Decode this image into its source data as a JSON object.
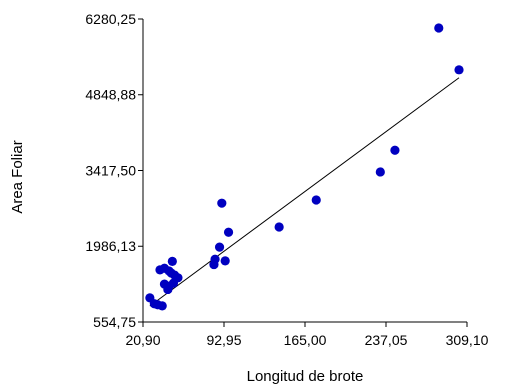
{
  "chart_data": {
    "type": "scatter",
    "xlabel": "Longitud de brote",
    "ylabel": "Area Foliar",
    "xlim": [
      20.9,
      309.1
    ],
    "ylim": [
      554.75,
      6280.25
    ],
    "xticks": [
      "20,90",
      "92,95",
      "165,00",
      "237,05",
      "309,10"
    ],
    "yticks": [
      "554,75",
      "1986,13",
      "3417,50",
      "4848,88",
      "6280,25"
    ],
    "xtick_values": [
      20.9,
      92.95,
      165.0,
      237.05,
      309.1
    ],
    "ytick_values": [
      554.75,
      1986.13,
      3417.5,
      4848.88,
      6280.25
    ],
    "grid": false,
    "marker_color": "#0000c0",
    "line_color": "#000000",
    "points": [
      {
        "x": 27,
        "y": 1010
      },
      {
        "x": 31,
        "y": 900
      },
      {
        "x": 34,
        "y": 880
      },
      {
        "x": 38,
        "y": 860
      },
      {
        "x": 36,
        "y": 1540
      },
      {
        "x": 40,
        "y": 1570
      },
      {
        "x": 44,
        "y": 1520
      },
      {
        "x": 47,
        "y": 1700
      },
      {
        "x": 46,
        "y": 1480
      },
      {
        "x": 49,
        "y": 1440
      },
      {
        "x": 52,
        "y": 1390
      },
      {
        "x": 40,
        "y": 1270
      },
      {
        "x": 44,
        "y": 1230
      },
      {
        "x": 48,
        "y": 1290
      },
      {
        "x": 43,
        "y": 1170
      },
      {
        "x": 84,
        "y": 1640
      },
      {
        "x": 85,
        "y": 1740
      },
      {
        "x": 89,
        "y": 1970
      },
      {
        "x": 94,
        "y": 1710
      },
      {
        "x": 97,
        "y": 2250
      },
      {
        "x": 91,
        "y": 2800
      },
      {
        "x": 142,
        "y": 2350
      },
      {
        "x": 175,
        "y": 2860
      },
      {
        "x": 232,
        "y": 3390
      },
      {
        "x": 245,
        "y": 3800
      },
      {
        "x": 284,
        "y": 6110
      },
      {
        "x": 302,
        "y": 5320
      }
    ],
    "regression_line": [
      {
        "x": 27,
        "y": 857
      },
      {
        "x": 302,
        "y": 5170
      }
    ]
  }
}
